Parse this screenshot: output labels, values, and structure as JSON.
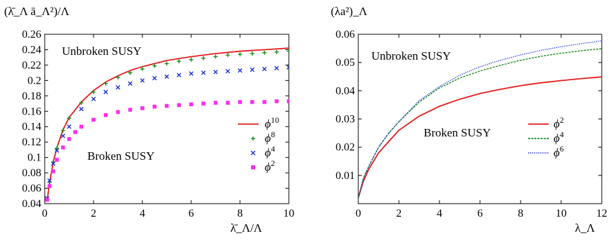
{
  "chart_data": [
    {
      "type": "scatter",
      "ylabel": "(λ̄_Λ ā_Λ²)/Λ",
      "xlabel": "λ̄_Λ/Λ",
      "xlim": [
        0,
        10
      ],
      "ylim": [
        0.04,
        0.26
      ],
      "xticks": [
        "0",
        "2",
        "4",
        "6",
        "8",
        "10"
      ],
      "yticks": [
        "0.04",
        "0.06",
        "0.08",
        "0.1",
        "0.12",
        "0.14",
        "0.16",
        "0.18",
        "0.2",
        "0.22",
        "0.24",
        "0.26"
      ],
      "annotations": [
        "Unbroken SUSY",
        "Broken SUSY"
      ],
      "legend_position": "center-right",
      "series": [
        {
          "name": "ϕ¹⁰",
          "base": "ϕ",
          "exp": "10",
          "style": "line",
          "color": "#e31a1c",
          "x": [
            0.1,
            0.2,
            0.35,
            0.5,
            0.75,
            1.0,
            1.5,
            2.0,
            2.5,
            3.0,
            3.5,
            4.0,
            5.0,
            6.0,
            7.0,
            8.0,
            9.0,
            10.0
          ],
          "y": [
            0.044,
            0.067,
            0.094,
            0.113,
            0.136,
            0.152,
            0.172,
            0.187,
            0.198,
            0.206,
            0.213,
            0.218,
            0.226,
            0.231,
            0.235,
            0.238,
            0.24,
            0.242
          ]
        },
        {
          "name": "ϕ⁸",
          "base": "ϕ",
          "exp": "8",
          "style": "plus",
          "color": "#1a8a1a",
          "x": [
            0.1,
            0.2,
            0.35,
            0.5,
            0.75,
            1.0,
            1.5,
            2.0,
            2.5,
            3.0,
            3.5,
            4.0,
            4.5,
            5.0,
            5.5,
            6.0,
            6.5,
            7.0,
            7.5,
            8.0,
            8.5,
            9.0,
            9.5,
            10.0
          ],
          "y": [
            0.046,
            0.068,
            0.094,
            0.112,
            0.135,
            0.151,
            0.171,
            0.185,
            0.196,
            0.204,
            0.21,
            0.215,
            0.219,
            0.222,
            0.225,
            0.227,
            0.229,
            0.231,
            0.233,
            0.234,
            0.235,
            0.236,
            0.237,
            0.238
          ]
        },
        {
          "name": "ϕ⁴",
          "base": "ϕ",
          "exp": "4",
          "style": "cross",
          "color": "#1a2fd6",
          "x": [
            0.1,
            0.2,
            0.35,
            0.5,
            0.75,
            1.0,
            1.5,
            2.0,
            2.5,
            3.0,
            3.5,
            4.0,
            4.5,
            5.0,
            5.5,
            6.0,
            6.5,
            7.0,
            7.5,
            8.0,
            8.5,
            9.0,
            9.5,
            10.0
          ],
          "y": [
            0.047,
            0.07,
            0.092,
            0.109,
            0.128,
            0.14,
            0.163,
            0.176,
            0.185,
            0.191,
            0.196,
            0.2,
            0.203,
            0.205,
            0.207,
            0.209,
            0.21,
            0.211,
            0.212,
            0.213,
            0.214,
            0.215,
            0.216,
            0.217
          ]
        },
        {
          "name": "ϕ²",
          "base": "ϕ",
          "exp": "2",
          "style": "square",
          "color": "#ff2bf0",
          "x": [
            0.1,
            0.2,
            0.35,
            0.5,
            0.75,
            1.0,
            1.25,
            1.5,
            2.0,
            2.5,
            3.0,
            3.5,
            4.0,
            4.5,
            5.0,
            5.5,
            6.0,
            6.5,
            7.0,
            7.5,
            8.0,
            8.5,
            9.0,
            9.5,
            10.0
          ],
          "y": [
            0.045,
            0.063,
            0.082,
            0.097,
            0.113,
            0.124,
            0.133,
            0.14,
            0.149,
            0.155,
            0.159,
            0.162,
            0.164,
            0.166,
            0.167,
            0.168,
            0.169,
            0.17,
            0.171,
            0.171,
            0.172,
            0.172,
            0.172,
            0.173,
            0.173
          ]
        }
      ]
    },
    {
      "type": "line",
      "ylabel": "(λa²)_Λ",
      "xlabel": "λ_Λ",
      "xlim": [
        0,
        12
      ],
      "ylim": [
        0,
        0.06
      ],
      "xticks": [
        "0",
        "2",
        "4",
        "6",
        "8",
        "10",
        "12"
      ],
      "yticks": [
        "0.01",
        "0.02",
        "0.03",
        "0.04",
        "0.05",
        "0.06"
      ],
      "annotations": [
        "Unbroken SUSY",
        "Broken SUSY"
      ],
      "legend_position": "center-right",
      "series": [
        {
          "name": "ϕ²",
          "base": "ϕ",
          "exp": "2",
          "style": "solid",
          "color": "#e31a1c",
          "x": [
            0,
            0.25,
            0.5,
            1,
            1.5,
            2,
            3,
            4,
            5,
            6,
            7,
            8,
            9,
            10,
            11,
            12
          ],
          "y": [
            0.002,
            0.008,
            0.012,
            0.018,
            0.022,
            0.026,
            0.031,
            0.0345,
            0.037,
            0.039,
            0.0405,
            0.0418,
            0.0428,
            0.0436,
            0.0443,
            0.0449
          ]
        },
        {
          "name": "ϕ⁴",
          "base": "ϕ",
          "exp": "4",
          "style": "dashed",
          "color": "#1a8a1a",
          "x": [
            0,
            0.25,
            0.5,
            1,
            1.5,
            2,
            3,
            4,
            5,
            6,
            7,
            8,
            9,
            10,
            11,
            12
          ],
          "y": [
            0.002,
            0.009,
            0.013,
            0.02,
            0.025,
            0.029,
            0.036,
            0.041,
            0.0445,
            0.047,
            0.049,
            0.0508,
            0.0522,
            0.0533,
            0.0542,
            0.0549
          ]
        },
        {
          "name": "ϕ⁶",
          "base": "ϕ",
          "exp": "6",
          "style": "dotted",
          "color": "#1a2fd6",
          "x": [
            0,
            0.25,
            0.5,
            1,
            1.5,
            2,
            3,
            4,
            5,
            6,
            7,
            8,
            9,
            10,
            11,
            12
          ],
          "y": [
            0.002,
            0.009,
            0.013,
            0.02,
            0.025,
            0.029,
            0.0365,
            0.0415,
            0.0455,
            0.0485,
            0.0508,
            0.0527,
            0.0543,
            0.0556,
            0.0567,
            0.0577
          ]
        }
      ]
    }
  ]
}
